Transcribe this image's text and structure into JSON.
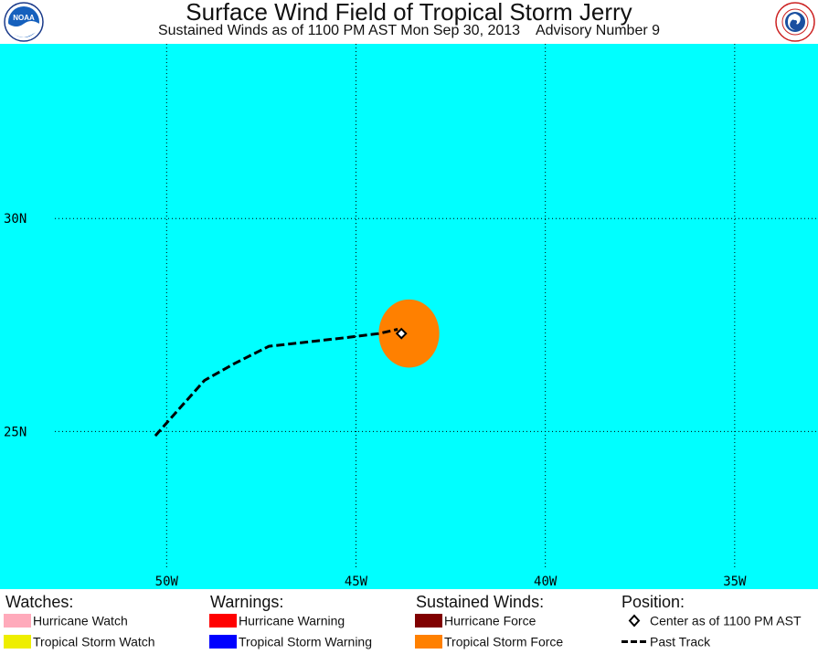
{
  "header": {
    "title": "Surface Wind Field of Tropical Storm Jerry",
    "subtitle": "Sustained Winds as of 1100 PM AST Mon Sep 30, 2013    Advisory Number 9",
    "noaa_logo_text": "NOAA",
    "nws_logo_text": "NATIONAL WEATHER SERVICE"
  },
  "map": {
    "background_color": "#00ffff",
    "lat_labels": [
      "30N",
      "25N"
    ],
    "lon_labels": [
      "50W",
      "45W",
      "40W",
      "35W"
    ],
    "grid": true,
    "extent": {
      "lon_min": -54.4,
      "lon_max": -32.8,
      "lat_min": 21.3,
      "lat_max": 34.1
    },
    "gridlines": {
      "lats": [
        30,
        25
      ],
      "lons": [
        -50,
        -45,
        -40,
        -35
      ]
    },
    "storm_center": {
      "lat": 27.3,
      "lon": -43.8
    },
    "tropical_storm_force_wind_field": {
      "center_lat": 27.3,
      "center_lon": -43.6,
      "radius_deg": 0.8,
      "color": "#ff8000"
    },
    "past_track": [
      {
        "lat": 24.9,
        "lon": -50.3
      },
      {
        "lat": 25.5,
        "lon": -49.7
      },
      {
        "lat": 26.2,
        "lon": -49.0
      },
      {
        "lat": 26.6,
        "lon": -48.2
      },
      {
        "lat": 27.0,
        "lon": -47.3
      },
      {
        "lat": 27.1,
        "lon": -46.3
      },
      {
        "lat": 27.2,
        "lon": -45.3
      },
      {
        "lat": 27.3,
        "lon": -44.4
      },
      {
        "lat": 27.4,
        "lon": -43.9
      }
    ]
  },
  "legend": {
    "watches": {
      "heading": "Watches:",
      "items": [
        {
          "label": "Hurricane Watch",
          "color": "#ffaabb"
        },
        {
          "label": "Tropical Storm Watch",
          "color": "#eeee00"
        }
      ]
    },
    "warnings": {
      "heading": "Warnings:",
      "items": [
        {
          "label": "Hurricane Warning",
          "color": "#ff0000"
        },
        {
          "label": "Tropical Storm Warning",
          "color": "#0000ff"
        }
      ]
    },
    "sustained_winds": {
      "heading": "Sustained Winds:",
      "items": [
        {
          "label": "Hurricane Force",
          "color": "#800000"
        },
        {
          "label": "Tropical Storm Force",
          "color": "#ff8000"
        }
      ]
    },
    "position": {
      "heading": "Position:",
      "items": [
        {
          "label": "Center as of 1100 PM AST",
          "icon": "diamond-icon"
        },
        {
          "label": "Past Track",
          "icon": "dashed-line-icon"
        }
      ]
    }
  }
}
